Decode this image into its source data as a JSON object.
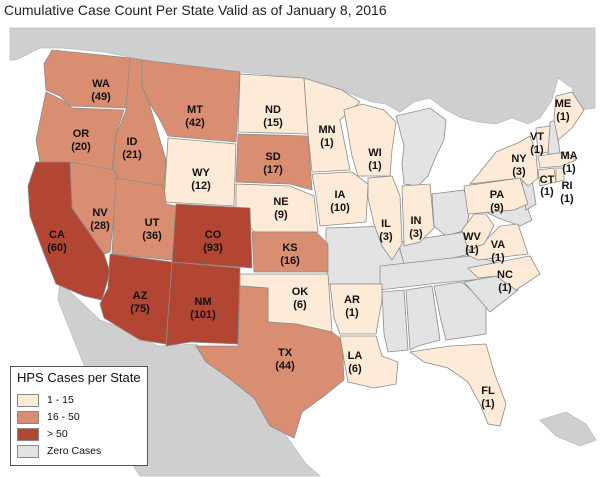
{
  "title": "Cumulative Case Count Per State Valid as of January 8, 2016",
  "colors": {
    "ocean": "#ffffff",
    "foreign_land": "#cfcfcf",
    "zero": "#e3e3e3",
    "low": "#fdebd8",
    "mid": "#d98e71",
    "high": "#b24633",
    "border": "#8c8c8c",
    "highlight_border": "#6a5040"
  },
  "legend": {
    "title": "HPS Cases per State",
    "items": [
      {
        "label": "1 - 15",
        "color_key": "low"
      },
      {
        "label": "16 - 50",
        "color_key": "mid"
      },
      {
        "label": "> 50",
        "color_key": "high"
      },
      {
        "label": "Zero Cases",
        "color_key": "zero"
      }
    ]
  },
  "states": [
    {
      "abbr": "WA",
      "count": "(49)",
      "category": "mid"
    },
    {
      "abbr": "OR",
      "count": "(20)",
      "category": "mid"
    },
    {
      "abbr": "ID",
      "count": "(21)",
      "category": "mid"
    },
    {
      "abbr": "MT",
      "count": "(42)",
      "category": "mid"
    },
    {
      "abbr": "ND",
      "count": "(15)",
      "category": "low"
    },
    {
      "abbr": "MN",
      "count": "(1)",
      "category": "low"
    },
    {
      "abbr": "WI",
      "count": "(1)",
      "category": "low"
    },
    {
      "abbr": "ME",
      "count": "(1)",
      "category": "low"
    },
    {
      "abbr": "VT",
      "count": "(1)",
      "category": "low"
    },
    {
      "abbr": "NY",
      "count": "(3)",
      "category": "low"
    },
    {
      "abbr": "MA",
      "count": "(1)",
      "category": "low"
    },
    {
      "abbr": "CT",
      "count": "(1)",
      "category": "low"
    },
    {
      "abbr": "RI",
      "count": "(1)",
      "category": "low"
    },
    {
      "abbr": "WY",
      "count": "(12)",
      "category": "low"
    },
    {
      "abbr": "SD",
      "count": "(17)",
      "category": "mid"
    },
    {
      "abbr": "IA",
      "count": "(10)",
      "category": "low"
    },
    {
      "abbr": "NE",
      "count": "(9)",
      "category": "low"
    },
    {
      "abbr": "IL",
      "count": "(3)",
      "category": "low"
    },
    {
      "abbr": "IN",
      "count": "(3)",
      "category": "low"
    },
    {
      "abbr": "PA",
      "count": "(9)",
      "category": "low"
    },
    {
      "abbr": "NV",
      "count": "(28)",
      "category": "mid"
    },
    {
      "abbr": "UT",
      "count": "(36)",
      "category": "mid"
    },
    {
      "abbr": "CO",
      "count": "(93)",
      "category": "high"
    },
    {
      "abbr": "CA",
      "count": "(60)",
      "category": "high"
    },
    {
      "abbr": "KS",
      "count": "(16)",
      "category": "mid"
    },
    {
      "abbr": "WV",
      "count": "(1)",
      "category": "low"
    },
    {
      "abbr": "VA",
      "count": "(1)",
      "category": "low"
    },
    {
      "abbr": "AZ",
      "count": "(75)",
      "category": "high"
    },
    {
      "abbr": "NM",
      "count": "(101)",
      "category": "high"
    },
    {
      "abbr": "OK",
      "count": "(6)",
      "category": "low"
    },
    {
      "abbr": "AR",
      "count": "(1)",
      "category": "low"
    },
    {
      "abbr": "NC",
      "count": "(1)",
      "category": "low"
    },
    {
      "abbr": "TX",
      "count": "(44)",
      "category": "mid"
    },
    {
      "abbr": "LA",
      "count": "(6)",
      "category": "low"
    },
    {
      "abbr": "FL",
      "count": "(1)",
      "category": "low"
    }
  ]
}
